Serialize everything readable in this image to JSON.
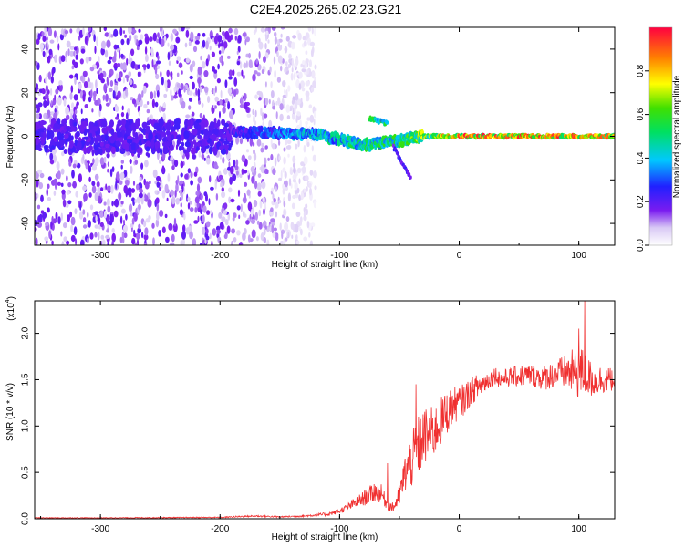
{
  "title": "C2E4.2025.265.02.23.G21",
  "chart_data": [
    {
      "type": "heatmap",
      "name": "spectrogram",
      "xlabel": "Height of straight line (km)",
      "ylabel": "Frequency (Hz)",
      "xlim": [
        -355,
        130
      ],
      "ylim": [
        -50,
        50
      ],
      "xticks": [
        -300,
        -200,
        -100,
        0,
        100
      ],
      "yticks": [
        -40,
        -20,
        0,
        20,
        40
      ],
      "colorbar": {
        "label": "Normalized spectral amplitude",
        "range": [
          0,
          1
        ],
        "ticks": [
          "0.0",
          "0.2",
          "0.4",
          "0.6",
          "0.8"
        ],
        "tick_values": [
          0,
          0.2,
          0.4,
          0.6,
          0.8
        ]
      },
      "features": [
        {
          "label": "broadband noise",
          "x_range": [
            -355,
            -120
          ],
          "freq_range": [
            -50,
            50
          ],
          "amplitude": 0.15
        },
        {
          "label": "signal track",
          "x": [
            -190,
            -120,
            -80,
            -50,
            -30,
            0,
            100,
            130
          ],
          "freq": [
            2,
            1,
            -4,
            -2,
            0,
            0,
            0,
            0
          ],
          "amplitude": [
            0.25,
            0.45,
            0.55,
            0.6,
            0.7,
            0.9,
            0.9,
            0.85
          ]
        },
        {
          "label": "secondary branch",
          "x": [
            -75,
            -60
          ],
          "freq": [
            8,
            6
          ],
          "amplitude": 0.5
        },
        {
          "label": "descending branch",
          "x": [
            -55,
            -40
          ],
          "freq": [
            -5,
            -20
          ],
          "amplitude": 0.25
        }
      ]
    },
    {
      "type": "line",
      "name": "snr",
      "xlabel": "Height of straight line (km)",
      "ylabel": "SNR (10 * v/v)",
      "scale_label": "(x10",
      "scale_exponent": "4",
      "xlim": [
        -355,
        130
      ],
      "ylim": [
        0,
        2.35
      ],
      "xticks": [
        -300,
        -200,
        -100,
        0,
        100
      ],
      "yticks": [
        "0.0",
        "0.5",
        "1.0",
        "1.5",
        "2.0"
      ],
      "ytick_values": [
        0,
        0.5,
        1.0,
        1.5,
        2.0
      ],
      "color": "#f03030",
      "series": [
        {
          "name": "SNR",
          "x": [
            -355,
            -300,
            -250,
            -200,
            -170,
            -150,
            -130,
            -110,
            -100,
            -90,
            -80,
            -75,
            -70,
            -65,
            -60,
            -55,
            -50,
            -45,
            -40,
            -35,
            -30,
            -25,
            -20,
            -15,
            -10,
            -5,
            0,
            5,
            10,
            15,
            20,
            25,
            30,
            35,
            40,
            50,
            60,
            70,
            80,
            90,
            100,
            105,
            110,
            120,
            130
          ],
          "y": [
            0.01,
            0.01,
            0.012,
            0.015,
            0.03,
            0.02,
            0.03,
            0.05,
            0.08,
            0.15,
            0.22,
            0.25,
            0.3,
            0.27,
            0.15,
            0.12,
            0.25,
            0.5,
            0.62,
            0.75,
            0.88,
            0.9,
            0.95,
            1.05,
            1.15,
            1.22,
            1.25,
            1.3,
            1.38,
            1.42,
            1.46,
            1.5,
            1.55,
            1.5,
            1.52,
            1.54,
            1.55,
            1.52,
            1.56,
            1.58,
            1.58,
            1.57,
            1.5,
            1.5,
            1.5
          ],
          "noise": [
            0.004,
            0.004,
            0.005,
            0.006,
            0.01,
            0.008,
            0.01,
            0.02,
            0.025,
            0.05,
            0.08,
            0.1,
            0.12,
            0.1,
            0.06,
            0.05,
            0.12,
            0.22,
            0.3,
            0.35,
            0.32,
            0.3,
            0.28,
            0.26,
            0.24,
            0.2,
            0.18,
            0.17,
            0.15,
            0.14,
            0.12,
            0.1,
            0.1,
            0.1,
            0.1,
            0.12,
            0.12,
            0.14,
            0.15,
            0.2,
            0.3,
            0.25,
            0.2,
            0.15,
            0.12
          ],
          "peaks": [
            {
              "x": -60,
              "y": 0.6
            },
            {
              "x": -36,
              "y": 1.45
            },
            {
              "x": 100,
              "y": 2.05
            },
            {
              "x": 105,
              "y": 2.35
            }
          ]
        }
      ]
    }
  ]
}
